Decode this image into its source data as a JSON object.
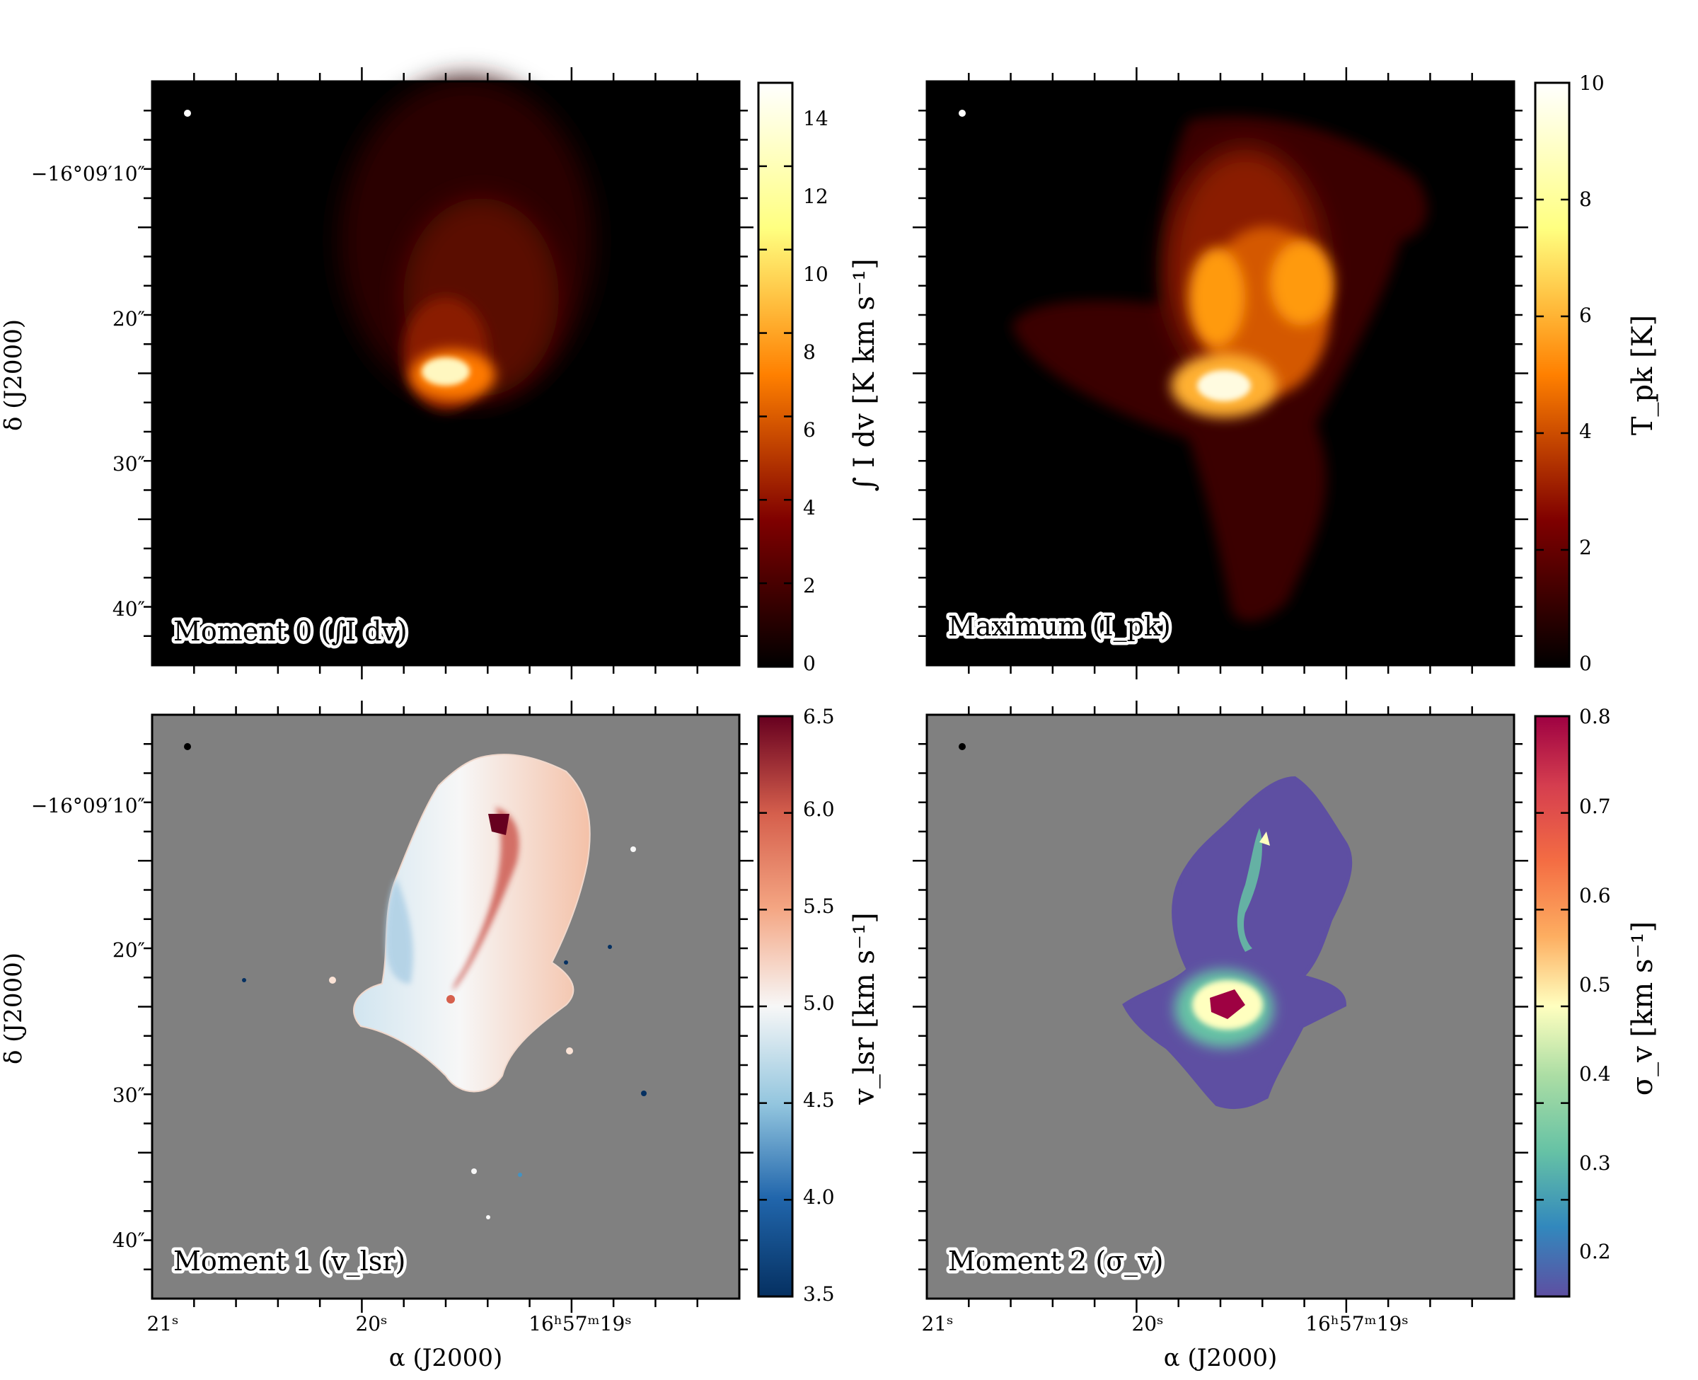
{
  "panels": [
    {
      "id": "mom0",
      "label": "Moment 0 (∫I dv)",
      "colormap": "afmhot",
      "background": "#000000",
      "beam_color": "#ffffff",
      "colorbar": {
        "label": "∫ I dv  [K km s⁻¹]",
        "ticks": [
          "0",
          "2",
          "4",
          "6",
          "8",
          "10",
          "12",
          "14"
        ],
        "range": [
          0,
          15
        ]
      }
    },
    {
      "id": "max",
      "label": "Maximum (I_pk)",
      "colormap": "afmhot",
      "background": "#000000",
      "beam_color": "#ffffff",
      "colorbar": {
        "label": "T_pk  [K]",
        "ticks": [
          "0",
          "2",
          "4",
          "6",
          "8",
          "10"
        ],
        "range": [
          0,
          10
        ]
      }
    },
    {
      "id": "mom1",
      "label": "Moment 1 (v_lsr)",
      "colormap": "RdBu_r",
      "background": "#808080",
      "beam_color": "#000000",
      "colorbar": {
        "label": "v_lsr  [km s⁻¹]",
        "ticks": [
          "3.5",
          "4.0",
          "4.5",
          "5.0",
          "5.5",
          "6.0",
          "6.5"
        ],
        "range": [
          3.5,
          6.5
        ]
      }
    },
    {
      "id": "mom2",
      "label": "Moment 2 (σ_v)",
      "colormap": "Spectral_r",
      "background": "#808080",
      "beam_color": "#000000",
      "colorbar": {
        "label": "σ_v  [km s⁻¹]",
        "ticks": [
          "0.2",
          "0.3",
          "0.4",
          "0.5",
          "0.6",
          "0.7",
          "0.8"
        ],
        "range": [
          0.15,
          0.8
        ]
      }
    }
  ],
  "axes": {
    "dec_ticks": [
      "−16°09′10″",
      "20″",
      "30″",
      "40″"
    ],
    "ra_ticks": [
      "21ˢ",
      "20ˢ",
      "16ʰ57ᵐ19ˢ"
    ],
    "ylabel": "δ (J2000)",
    "xlabel": "α (J2000)"
  }
}
